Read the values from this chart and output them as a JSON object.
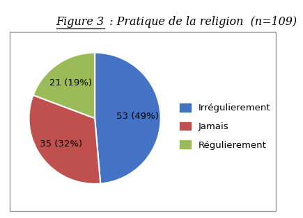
{
  "title_part1": "Figure 3",
  "title_part2": " : Pratique de la religion  (n=109)",
  "slices": [
    53,
    35,
    21
  ],
  "colors": [
    "#4472C4",
    "#C0504D",
    "#9BBB59"
  ],
  "slice_labels": [
    "53 (49%)",
    "35 (32%)",
    "21 (19%)"
  ],
  "legend_labels": [
    "Irrégulierement",
    "Jamais",
    "Régulierement"
  ],
  "startangle": 90,
  "background_color": "#ffffff",
  "border_color": "#999999",
  "title_fontsize": 11.5,
  "label_fontsize": 9.5,
  "legend_fontsize": 9.5
}
